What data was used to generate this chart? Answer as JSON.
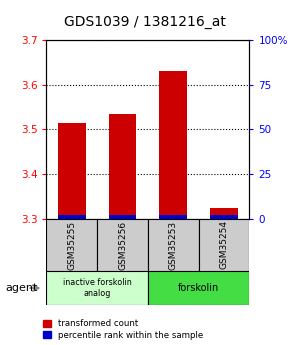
{
  "title": "GDS1039 / 1381216_at",
  "samples": [
    "GSM35255",
    "GSM35256",
    "GSM35253",
    "GSM35254"
  ],
  "red_values": [
    3.515,
    3.535,
    3.63,
    3.325
  ],
  "blue_values": [
    3.304,
    3.304,
    3.304,
    3.304
  ],
  "ylim_left": [
    3.3,
    3.7
  ],
  "ylim_right": [
    0,
    100
  ],
  "yticks_left": [
    3.3,
    3.4,
    3.5,
    3.6,
    3.7
  ],
  "yticks_right": [
    0,
    25,
    50,
    75,
    100
  ],
  "ytick_labels_right": [
    "0",
    "25",
    "50",
    "75",
    "100%"
  ],
  "bar_width": 0.55,
  "legend_red": "transformed count",
  "legend_blue": "percentile rank within the sample",
  "agent_label": "agent",
  "title_fontsize": 10,
  "bar_color_red": "#cc0000",
  "bar_color_blue": "#0000cc",
  "group1_color": "#ccffcc",
  "group2_color": "#44dd44",
  "group1_label": "inactive forskolin\nanalog",
  "group2_label": "forskolin",
  "sample_box_color": "#cccccc"
}
